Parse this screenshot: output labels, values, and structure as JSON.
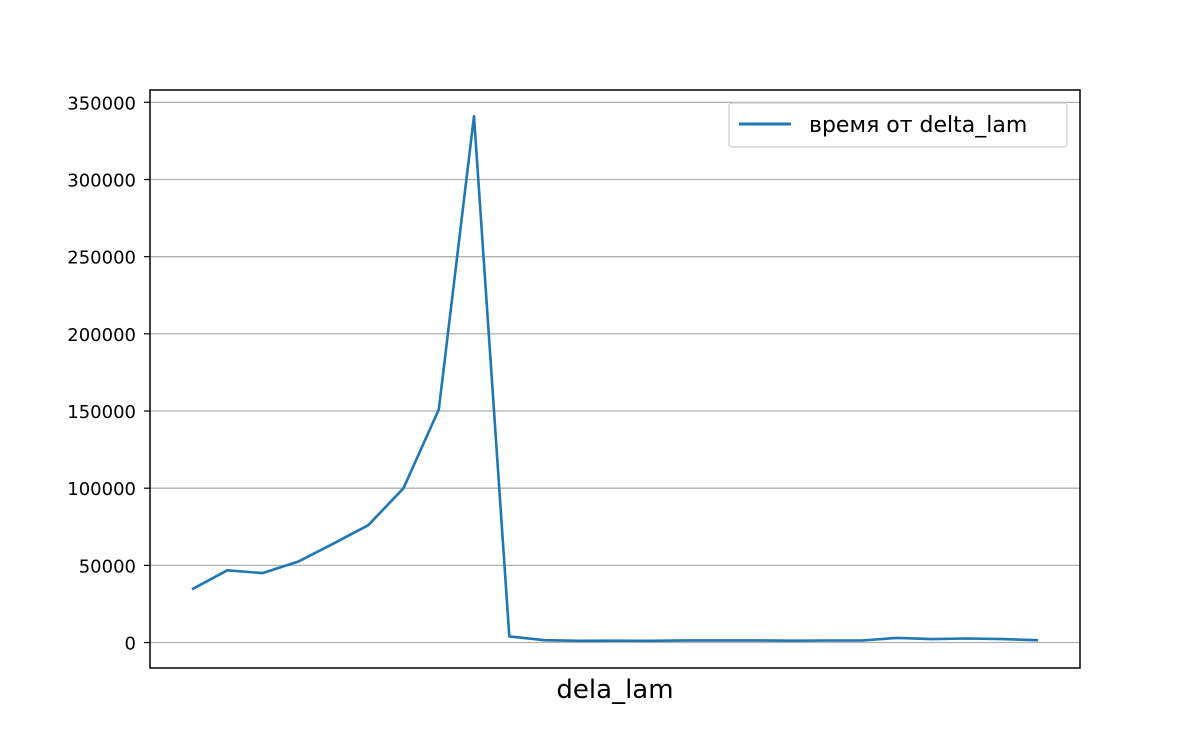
{
  "chart_data": {
    "type": "line",
    "title": "",
    "xlabel": "dela_lam",
    "ylabel": "",
    "x_ticks_visible": false,
    "ylim": [
      -16500,
      358000
    ],
    "yticks": [
      0,
      50000,
      100000,
      150000,
      200000,
      250000,
      300000,
      350000
    ],
    "ytick_labels": [
      "0",
      "50000",
      "100000",
      "150000",
      "200000",
      "250000",
      "300000",
      "350000"
    ],
    "grid": "horizontal",
    "legend_position": "top-right",
    "series": [
      {
        "name": "время от delta_lam",
        "color": "#1f77b4",
        "values": [
          34500,
          46800,
          45000,
          52300,
          64000,
          76000,
          100000,
          151000,
          341000,
          4000,
          1500,
          1100,
          1200,
          1100,
          1400,
          1400,
          1400,
          1200,
          1300,
          1300,
          3000,
          2200,
          2600,
          2200,
          1500
        ]
      }
    ]
  }
}
